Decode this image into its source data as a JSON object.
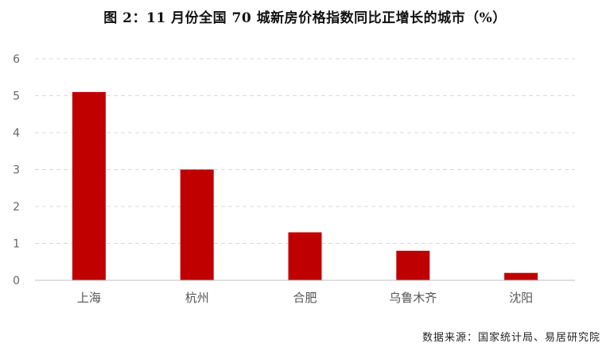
{
  "title": "图 2：11 月份全国 70 城新房价格指数同比正增长的城市（%）",
  "source": "数据来源：国家统计局、易居研究院",
  "colors": {
    "bar": "#C00000",
    "grid": "#D9D9D9",
    "axis": "#BFBFBF"
  },
  "chart_data": {
    "type": "bar",
    "title": "图 2：11 月份全国 70 城新房价格指数同比正增长的城市（%）",
    "categories": [
      "上海",
      "杭州",
      "合肥",
      "乌鲁木齐",
      "沈阳"
    ],
    "values": [
      5.1,
      3.0,
      1.3,
      0.8,
      0.2
    ],
    "yticks": [
      "0",
      "1",
      "2",
      "3",
      "4",
      "5",
      "6"
    ],
    "ylim": [
      0,
      6
    ],
    "grid": true,
    "xlabel": "",
    "ylabel": ""
  }
}
